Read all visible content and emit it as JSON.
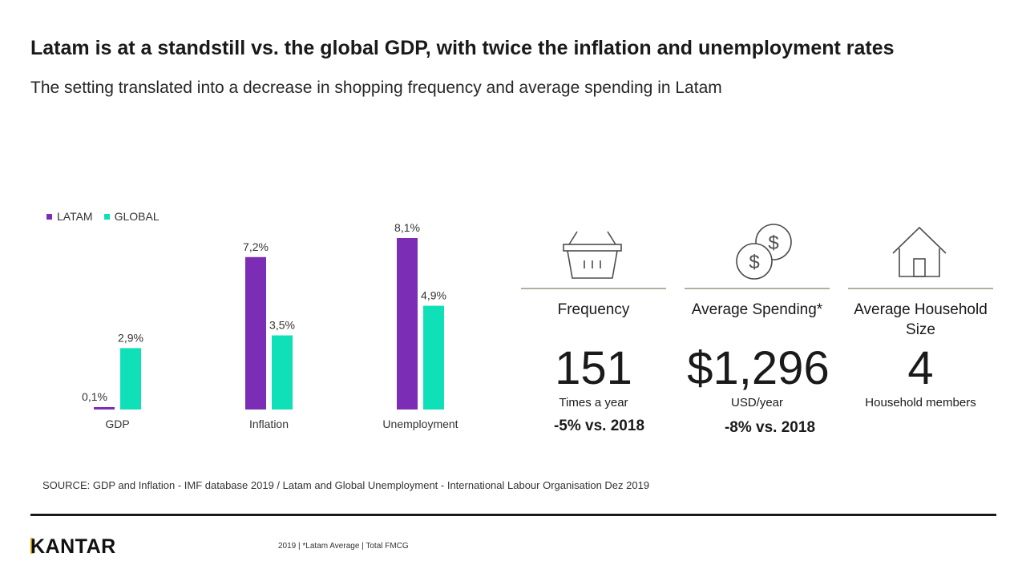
{
  "header": {
    "title": "Latam is at a standstill vs. the global GDP, with twice the inflation and unemployment rates",
    "subtitle": "The setting translated into a decrease in shopping frequency and average spending in Latam"
  },
  "colors": {
    "latam": "#7b2db5",
    "global": "#0fe0b8",
    "rule": "#b0b0a0"
  },
  "chart_data": {
    "type": "bar",
    "categories": [
      "GDP",
      "Inflation",
      "Unemployment"
    ],
    "series": [
      {
        "name": "LATAM",
        "values": [
          0.1,
          7.2,
          8.1
        ],
        "labels": [
          "0,1%",
          "7,2%",
          "8,1%"
        ]
      },
      {
        "name": "GLOBAL",
        "values": [
          2.9,
          3.5,
          4.9
        ],
        "labels": [
          "2,9%",
          "3,5%",
          "4,9%"
        ]
      }
    ],
    "legend": "top-left",
    "ylim": [
      0,
      8.1
    ],
    "grid": false
  },
  "kpis": [
    {
      "icon": "shopping-basket-icon",
      "label": "Frequency",
      "value": "151",
      "unit": "Times a year",
      "change": "-5% vs. 2018"
    },
    {
      "icon": "coins-icon",
      "label": "Average Spending*",
      "value": "$1,296",
      "unit": "USD/year",
      "change": "-8% vs. 2018"
    },
    {
      "icon": "house-icon",
      "label": "Average Household Size",
      "value": "4",
      "unit": "Household members",
      "change": ""
    }
  ],
  "footer": {
    "source": "SOURCE:  GDP and Inflation - IMF database 2019 / Latam and Global Unemployment - International Labour Organisation  Dez 2019",
    "brand": "KANTAR",
    "note": "2019 | *Latam Average | Total FMCG"
  }
}
